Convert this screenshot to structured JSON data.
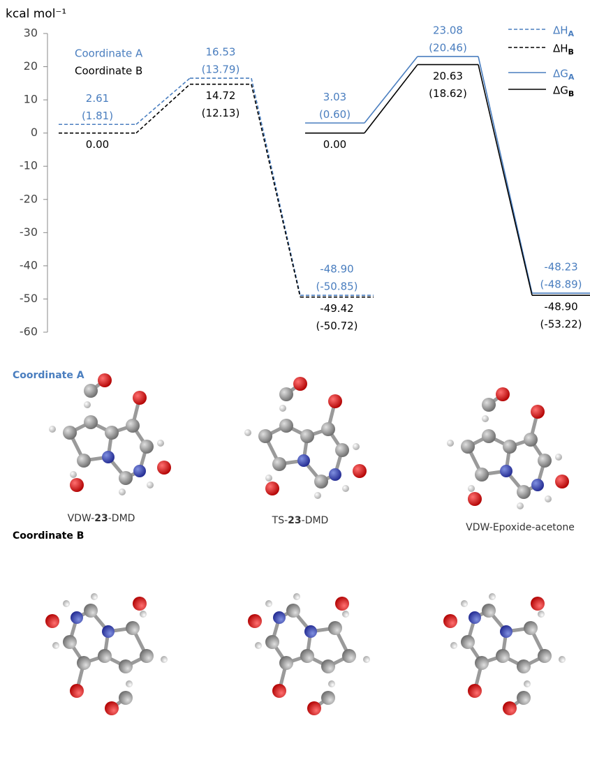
{
  "chart_data": {
    "type": "energy-levels",
    "y_label": "kcal mol⁻¹",
    "ylim": [
      -60,
      30
    ],
    "yticks": [
      -60,
      -50,
      -40,
      -30,
      -20,
      -10,
      0,
      10,
      20,
      30
    ],
    "annotations": [
      {
        "text": "Coordinate A",
        "color": "#4a7ebf"
      },
      {
        "text": "Coordinate B",
        "color": "#000000"
      }
    ],
    "series": [
      {
        "name": "ΔH",
        "subscript": "A",
        "color": "#4a7ebf",
        "dashed": true,
        "values": [
          2.61,
          16.53,
          -48.9
        ],
        "value_labels": [
          "2.61",
          "16.53",
          "-48.90"
        ],
        "secondary_labels": [
          "(1.81)",
          "(13.79)",
          "(-50.85)"
        ]
      },
      {
        "name": "ΔH",
        "subscript": "B",
        "color": "#000000",
        "dashed": true,
        "values": [
          0.0,
          14.72,
          -49.42
        ],
        "value_labels": [
          "0.00",
          "14.72",
          "-49.42"
        ],
        "secondary_labels": [
          null,
          "(12.13)",
          "(-50.72)"
        ]
      },
      {
        "name": "ΔG",
        "subscript": "A",
        "color": "#4a7ebf",
        "dashed": false,
        "values": [
          3.03,
          23.08,
          -48.23
        ],
        "value_labels": [
          "3.03",
          "23.08",
          "-48.23"
        ],
        "secondary_labels": [
          "(0.60)",
          "(20.46)",
          "(-48.89)"
        ]
      },
      {
        "name": "ΔG",
        "subscript": "B",
        "color": "#000000",
        "dashed": false,
        "values": [
          0.0,
          20.63,
          -48.9
        ],
        "value_labels": [
          "0.00",
          "20.63",
          "-48.90"
        ],
        "secondary_labels": [
          null,
          "(18.62)",
          "(-53.22)"
        ]
      }
    ]
  },
  "structures": {
    "rows": [
      {
        "label": "Coordinate A",
        "color": "#4a7ebf",
        "captions": [
          [
            "VDW-",
            "23",
            "-DMD"
          ],
          [
            "TS-",
            "23",
            "-DMD"
          ],
          [
            "VDW-Epoxide-acetone",
            "",
            ""
          ]
        ]
      },
      {
        "label": "Coordinate B",
        "color": "#000000",
        "captions": []
      }
    ]
  }
}
